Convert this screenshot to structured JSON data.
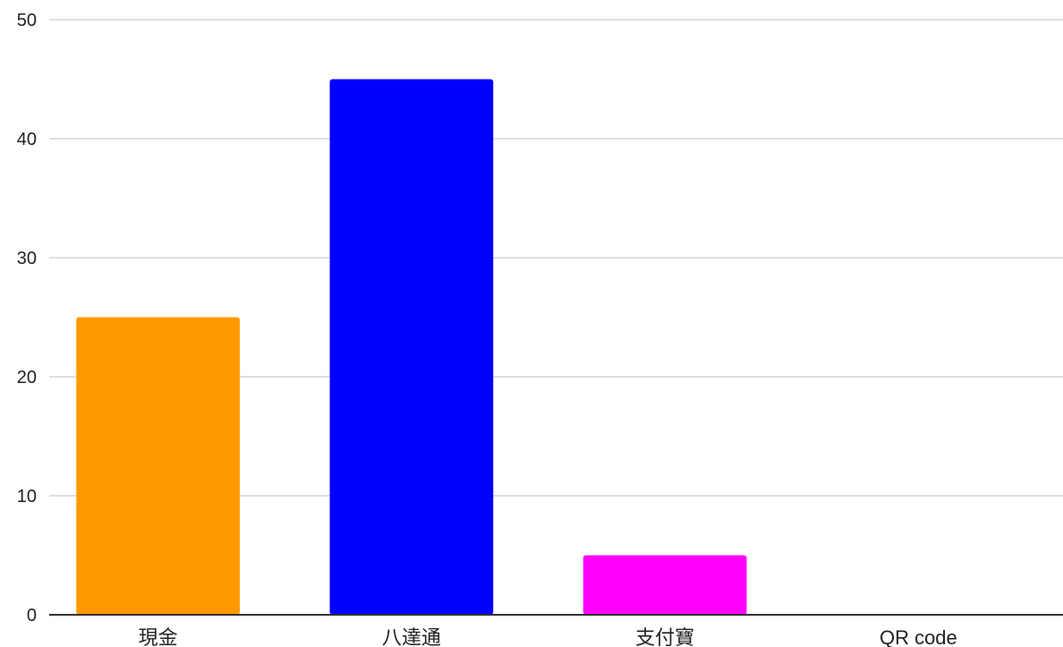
{
  "chart_data": {
    "type": "bar",
    "title": "",
    "xlabel": "",
    "ylabel": "",
    "categories": [
      "現金",
      "八達通",
      "支付寶",
      "QR code"
    ],
    "values": [
      25,
      45,
      5,
      0
    ],
    "colors": [
      "#ff9900",
      "#0000ff",
      "#ff00ff",
      "#ffffff"
    ],
    "ylim": [
      0,
      50
    ],
    "yticks": [
      0,
      10,
      20,
      30,
      40,
      50
    ],
    "grid": true,
    "legend": "none"
  }
}
